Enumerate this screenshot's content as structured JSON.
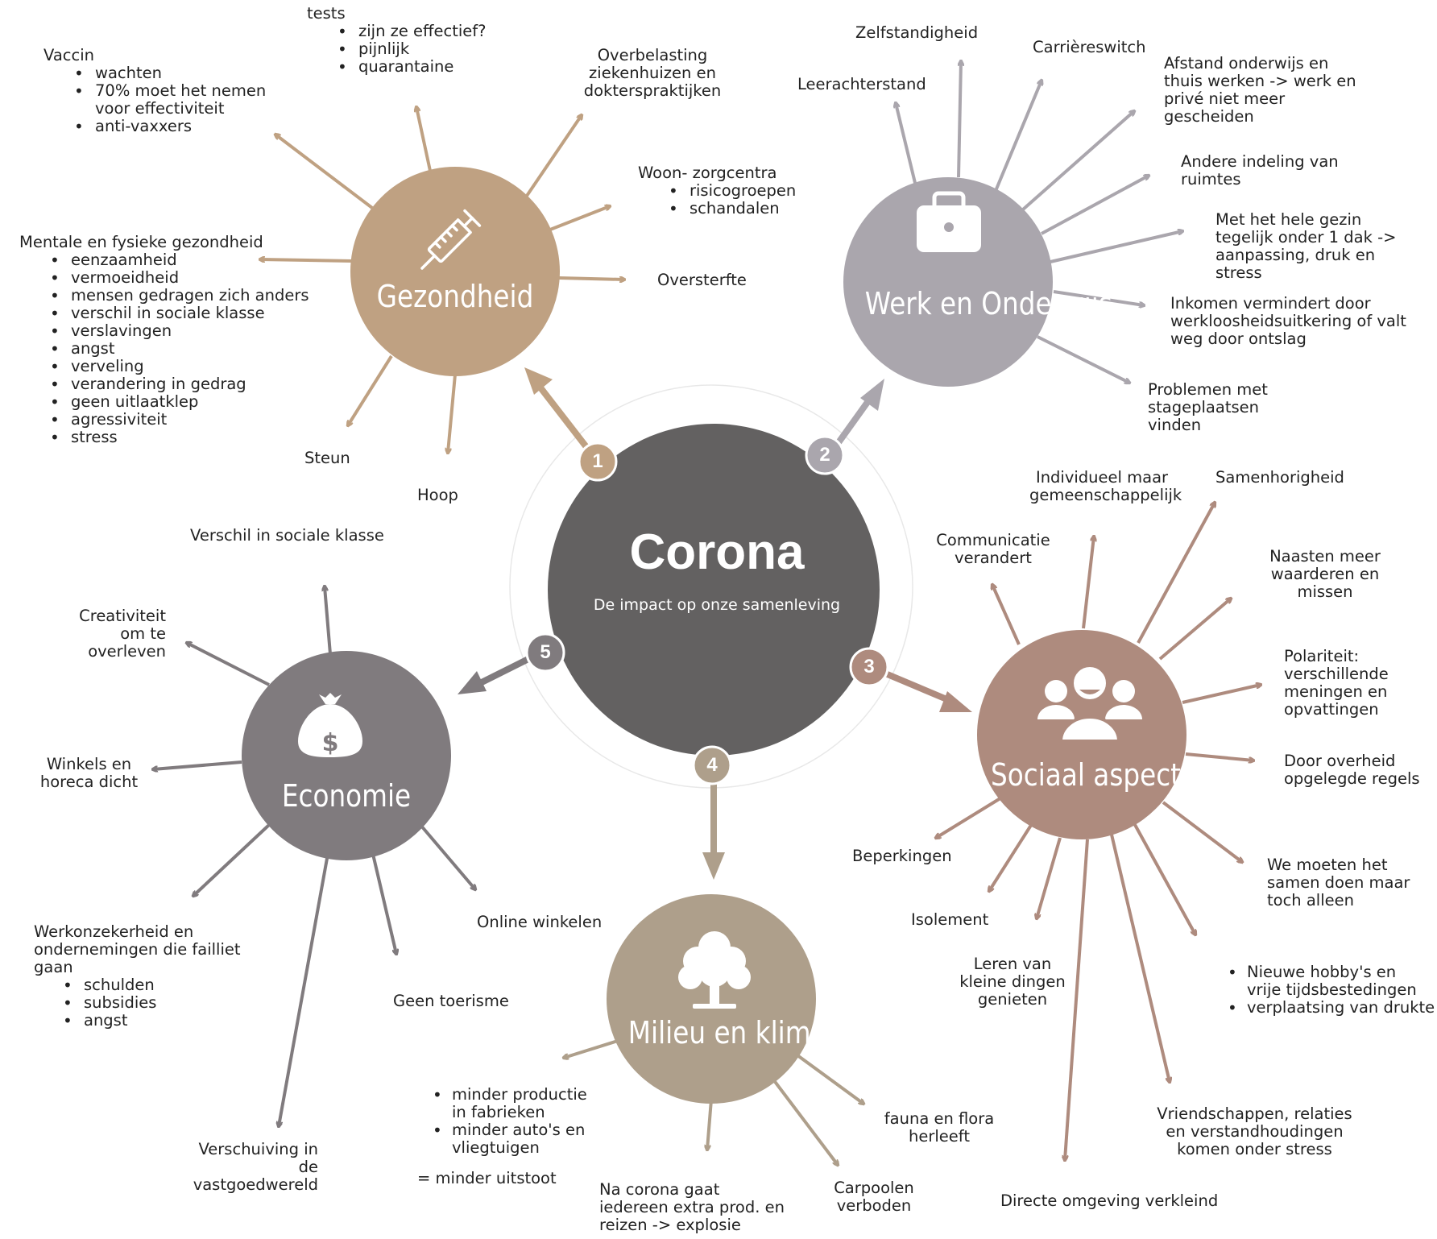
{
  "colors": {
    "gezondheid": "#bfa182",
    "werk": "#aaa6ad",
    "sociaal": "#ae8b7e",
    "milieu": "#ae9f8b",
    "economie": "#807b7e",
    "center": "#636161"
  },
  "center": {
    "title": "Corona",
    "subtitle": "De impact op onze samenleving"
  },
  "hubs": {
    "gezondheid": {
      "number": "1",
      "title": "Gezondheid",
      "icon": "syringe-icon"
    },
    "werk": {
      "number": "2",
      "title_line1": "Werk en",
      "title_line2": "Onderwijs",
      "icon": "briefcase-icon"
    },
    "sociaal": {
      "number": "3",
      "title": "Sociaal aspect",
      "icon": "people-icon"
    },
    "milieu": {
      "number": "4",
      "title_line1": "Milieu en",
      "title_line2": "klimaat",
      "icon": "tree-icon"
    },
    "economie": {
      "number": "5",
      "title": "Economie",
      "icon": "money-bag-icon"
    }
  },
  "gezondheid": {
    "vaccin": {
      "title": "Vaccin",
      "items": [
        "wachten",
        "70% moet het nemen voor effectiviteit",
        "anti-vaxxers"
      ]
    },
    "tests": {
      "title": "tests",
      "items": [
        "zijn ze effectief?",
        "pijnlijk",
        "quarantaine"
      ]
    },
    "overbelasting": "Overbelasting ziekenhuizen en dokterspraktijken",
    "woon": {
      "title": "Woon- zorgcentra",
      "items": [
        "risicogroepen",
        "schandalen"
      ]
    },
    "oversterfte": "Oversterfte",
    "mentaal": {
      "title": "Mentale en fysieke gezondheid",
      "items": [
        "eenzaamheid",
        "vermoeidheid",
        "mensen gedragen zich anders",
        "verschil in sociale klasse",
        "verslavingen",
        "angst",
        "verveling",
        "verandering in gedrag",
        "geen uitlaatklep",
        "agressiviteit",
        "stress"
      ]
    },
    "steun": "Steun",
    "hoop": "Hoop"
  },
  "werk": {
    "leerachterstand": "Leerachterstand",
    "zelfstandigheid": "Zelfstandigheid",
    "carriereswitch": "Carrièreswitch",
    "afstand": "Afstand onderwijs en thuis werken -> werk en privé niet meer gescheiden",
    "indeling": "Andere indeling van ruimtes",
    "gezin": "Met het hele gezin tegelijk onder 1 dak -> aanpassing, druk en stress",
    "inkomen": "Inkomen vermindert door werkloosheidsuitkering of valt weg door ontslag",
    "stage": "Problemen met stageplaatsen vinden"
  },
  "sociaal": {
    "individueel": "Individueel maar gemeenschappelijk",
    "samenhorigheid": "Samenhorigheid",
    "communicatie": "Communicatie verandert",
    "naasten": "Naasten meer waarderen en missen",
    "polariteit": "Polariteit: verschillende meningen en opvattingen",
    "regels": "Door overheid opgelegde regels",
    "samen": "We moeten het samen doen maar toch alleen",
    "hobbys": {
      "items": [
        "Nieuwe hobby's en vrije tijdsbestedingen",
        "verplaatsing van drukte"
      ]
    },
    "vriendschappen": "Vriendschappen, relaties en verstandhoudingen komen onder stress",
    "omgeving": "Directe omgeving verkleind",
    "leren": "Leren van kleine dingen genieten",
    "isolement": "Isolement",
    "beperkingen": "Beperkingen"
  },
  "milieu": {
    "productie": {
      "items": [
        "minder productie in fabrieken",
        "minder auto's en vliegtuigen"
      ]
    },
    "uitstoot": "= minder uitstoot",
    "explosie": "Na corona gaat iedereen extra prod. en reizen -> explosie",
    "carpoolen": "Carpoolen verboden",
    "fauna": "fauna en flora herleeft"
  },
  "economie": {
    "sociale_klasse": "Verschil in sociale klasse",
    "creativiteit": "Creativiteit om te overleven",
    "winkels": "Winkels en horeca dicht",
    "werkonzekerheid": {
      "title": "Werkonzekerheid en ondernemingen die failliet gaan",
      "items": [
        "schulden",
        "subsidies",
        "angst"
      ]
    },
    "vastgoed": "Verschuiving in de vastgoedwereld",
    "toerisme": "Geen toerisme",
    "online": "Online winkelen"
  }
}
